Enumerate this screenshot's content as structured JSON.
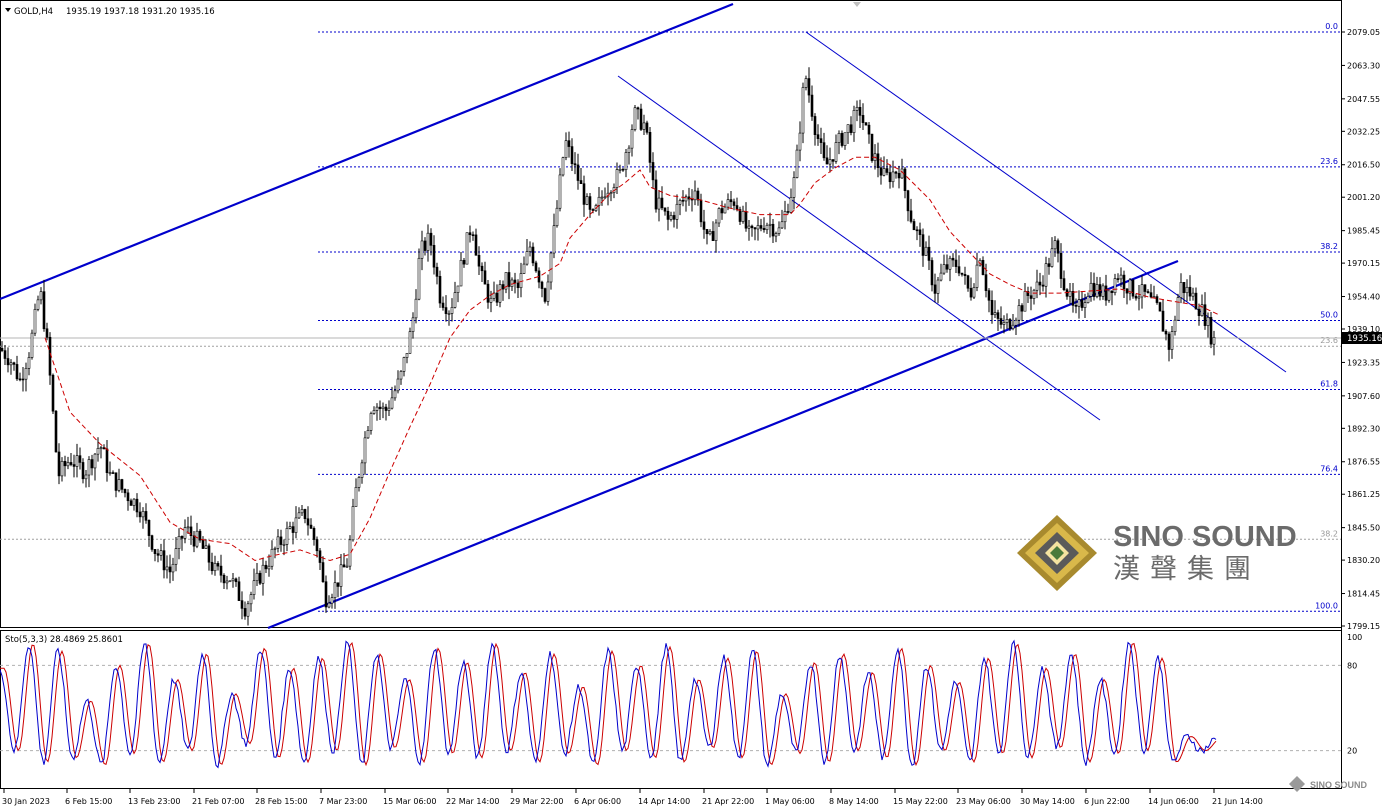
{
  "header": {
    "symbol": "GOLD,H4",
    "ohlc": "1935.19 1937.18 1931.20 1935.16"
  },
  "indicator": {
    "label": "Sto(5,3,3) 28.4869 25.8601",
    "levels": [
      "100",
      "80",
      "20"
    ]
  },
  "price_tag": "1935.16",
  "logo": {
    "text_en": "SINO SOUND",
    "text_zh": "漢聲集團",
    "watermark": "SINO SOUND"
  },
  "colors": {
    "candle": "#000000",
    "ma": "#cc0000",
    "fib": "#0000cc",
    "channel": "#0000cc",
    "stoch_main": "#0000cc",
    "stoch_signal": "#cc0000"
  },
  "chart_data": {
    "type": "candlestick",
    "price_axis": {
      "range": [
        1799.15,
        2087.0
      ],
      "ticks": [
        "2079.05",
        "2063.30",
        "2047.55",
        "2032.25",
        "2016.50",
        "2001.20",
        "1985.45",
        "1970.15",
        "1954.40",
        "1939.10",
        "1923.35",
        "1907.60",
        "1892.30",
        "1876.55",
        "1861.25",
        "1845.50",
        "1830.20",
        "1814.45",
        "1799.15"
      ]
    },
    "time_axis": [
      "30 Jan 2023",
      "6 Feb 15:00",
      "13 Feb 23:00",
      "21 Feb 07:00",
      "28 Feb 15:00",
      "7 Mar 23:00",
      "15 Mar 06:00",
      "22 Mar 14:00",
      "29 Mar 22:00",
      "6 Apr 06:00",
      "14 Apr 14:00",
      "21 Apr 22:00",
      "1 May 06:00",
      "8 May 14:00",
      "15 May 22:00",
      "23 May 06:00",
      "30 May 14:00",
      "6 Jun 22:00",
      "14 Jun 06:00",
      "21 Jun 14:00"
    ],
    "fib_primary": [
      {
        "label": "0.0",
        "price": 2079.05
      },
      {
        "label": "23.6",
        "price": 2015.5
      },
      {
        "label": "38.2",
        "price": 1975.4
      },
      {
        "label": "50.0",
        "price": 1943.1
      },
      {
        "label": "61.8",
        "price": 1910.6
      },
      {
        "label": "76.4",
        "price": 1870.6
      },
      {
        "label": "100.0",
        "price": 1806.1
      }
    ],
    "fib_secondary": [
      {
        "label": "23.6",
        "price": 1931.0
      },
      {
        "label": "38.2",
        "price": 1840.0
      }
    ],
    "close_path": [
      [
        0,
        1930
      ],
      [
        10,
        1925
      ],
      [
        20,
        1915
      ],
      [
        30,
        1930
      ],
      [
        40,
        1958
      ],
      [
        48,
        1928
      ],
      [
        58,
        1870
      ],
      [
        70,
        1878
      ],
      [
        85,
        1872
      ],
      [
        100,
        1885
      ],
      [
        110,
        1870
      ],
      [
        125,
        1862
      ],
      [
        140,
        1855
      ],
      [
        155,
        1835
      ],
      [
        170,
        1825
      ],
      [
        185,
        1845
      ],
      [
        200,
        1838
      ],
      [
        215,
        1825
      ],
      [
        230,
        1822
      ],
      [
        245,
        1808
      ],
      [
        262,
        1825
      ],
      [
        275,
        1835
      ],
      [
        290,
        1845
      ],
      [
        305,
        1852
      ],
      [
        318,
        1835
      ],
      [
        325,
        1812
      ],
      [
        335,
        1818
      ],
      [
        348,
        1830
      ],
      [
        355,
        1860
      ],
      [
        362,
        1880
      ],
      [
        372,
        1905
      ],
      [
        385,
        1900
      ],
      [
        400,
        1915
      ],
      [
        412,
        1940
      ],
      [
        420,
        1975
      ],
      [
        430,
        1982
      ],
      [
        440,
        1955
      ],
      [
        450,
        1948
      ],
      [
        462,
        1970
      ],
      [
        472,
        1990
      ],
      [
        480,
        1965
      ],
      [
        492,
        1950
      ],
      [
        505,
        1962
      ],
      [
        518,
        1958
      ],
      [
        530,
        1978
      ],
      [
        545,
        1955
      ],
      [
        555,
        1988
      ],
      [
        565,
        2028
      ],
      [
        578,
        2010
      ],
      [
        592,
        1990
      ],
      [
        605,
        2005
      ],
      [
        620,
        2012
      ],
      [
        635,
        2040
      ],
      [
        645,
        2035
      ],
      [
        655,
        2000
      ],
      [
        668,
        1990
      ],
      [
        680,
        1998
      ],
      [
        695,
        2005
      ],
      [
        708,
        1978
      ],
      [
        720,
        1995
      ],
      [
        735,
        2000
      ],
      [
        750,
        1982
      ],
      [
        765,
        1990
      ],
      [
        780,
        1985
      ],
      [
        795,
        2010
      ],
      [
        805,
        2060
      ],
      [
        815,
        2035
      ],
      [
        825,
        2015
      ],
      [
        840,
        2028
      ],
      [
        850,
        2035
      ],
      [
        860,
        2042
      ],
      [
        872,
        2022
      ],
      [
        885,
        2010
      ],
      [
        900,
        2015
      ],
      [
        912,
        1990
      ],
      [
        925,
        1975
      ],
      [
        935,
        1958
      ],
      [
        945,
        1968
      ],
      [
        958,
        1970
      ],
      [
        970,
        1955
      ],
      [
        980,
        1975
      ],
      [
        992,
        1945
      ],
      [
        1005,
        1940
      ],
      [
        1018,
        1948
      ],
      [
        1028,
        1955
      ],
      [
        1040,
        1960
      ],
      [
        1055,
        1978
      ],
      [
        1065,
        1960
      ],
      [
        1075,
        1945
      ],
      [
        1090,
        1960
      ],
      [
        1105,
        1955
      ],
      [
        1118,
        1965
      ],
      [
        1130,
        1958
      ],
      [
        1145,
        1955
      ],
      [
        1158,
        1948
      ],
      [
        1170,
        1930
      ],
      [
        1180,
        1960
      ],
      [
        1192,
        1955
      ],
      [
        1205,
        1945
      ],
      [
        1212,
        1935
      ],
      [
        1218,
        1935
      ]
    ],
    "moving_average": [
      [
        45,
        1935
      ],
      [
        70,
        1900
      ],
      [
        100,
        1885
      ],
      [
        140,
        1870
      ],
      [
        170,
        1848
      ],
      [
        200,
        1840
      ],
      [
        230,
        1838
      ],
      [
        255,
        1830
      ],
      [
        270,
        1832
      ],
      [
        300,
        1835
      ],
      [
        330,
        1830
      ],
      [
        350,
        1833
      ],
      [
        370,
        1850
      ],
      [
        390,
        1872
      ],
      [
        410,
        1893
      ],
      [
        430,
        1913
      ],
      [
        450,
        1935
      ],
      [
        470,
        1948
      ],
      [
        490,
        1955
      ],
      [
        510,
        1960
      ],
      [
        540,
        1964
      ],
      [
        560,
        1970
      ],
      [
        570,
        1982
      ],
      [
        590,
        1993
      ],
      [
        610,
        2003
      ],
      [
        625,
        2008
      ],
      [
        640,
        2014
      ],
      [
        650,
        2006
      ],
      [
        670,
        2002
      ],
      [
        700,
        2000
      ],
      [
        730,
        1996
      ],
      [
        760,
        1993
      ],
      [
        790,
        1993
      ],
      [
        800,
        1998
      ],
      [
        815,
        2008
      ],
      [
        835,
        2015
      ],
      [
        855,
        2020
      ],
      [
        875,
        2020
      ],
      [
        900,
        2014
      ],
      [
        930,
        2000
      ],
      [
        950,
        1985
      ],
      [
        970,
        1975
      ],
      [
        990,
        1965
      ],
      [
        1010,
        1960
      ],
      [
        1030,
        1956
      ],
      [
        1060,
        1956
      ],
      [
        1090,
        1957
      ],
      [
        1120,
        1958
      ],
      [
        1150,
        1954
      ],
      [
        1175,
        1952
      ],
      [
        1200,
        1950
      ],
      [
        1218,
        1946
      ]
    ],
    "stochastic": {
      "main_series_name": "%K",
      "signal_series_name": "%D",
      "range": [
        0,
        100
      ],
      "swings": [
        78,
        20,
        95,
        12,
        90,
        15,
        55,
        10,
        80,
        18,
        95,
        12,
        70,
        20,
        88,
        10,
        60,
        25,
        92,
        15,
        78,
        12,
        85,
        20,
        96,
        10,
        88,
        22,
        70,
        12,
        92,
        18,
        82,
        15,
        95,
        20,
        75,
        12,
        88,
        18,
        65,
        10,
        90,
        20,
        80,
        15,
        93,
        12,
        70,
        22,
        85,
        15,
        90,
        10,
        60,
        18,
        82,
        12,
        88,
        20,
        75,
        15,
        92,
        10,
        80,
        20,
        68,
        12,
        85,
        18,
        95,
        15,
        78,
        22,
        88,
        12,
        70,
        18,
        96,
        20,
        85,
        12,
        30,
        20,
        28
      ]
    }
  }
}
